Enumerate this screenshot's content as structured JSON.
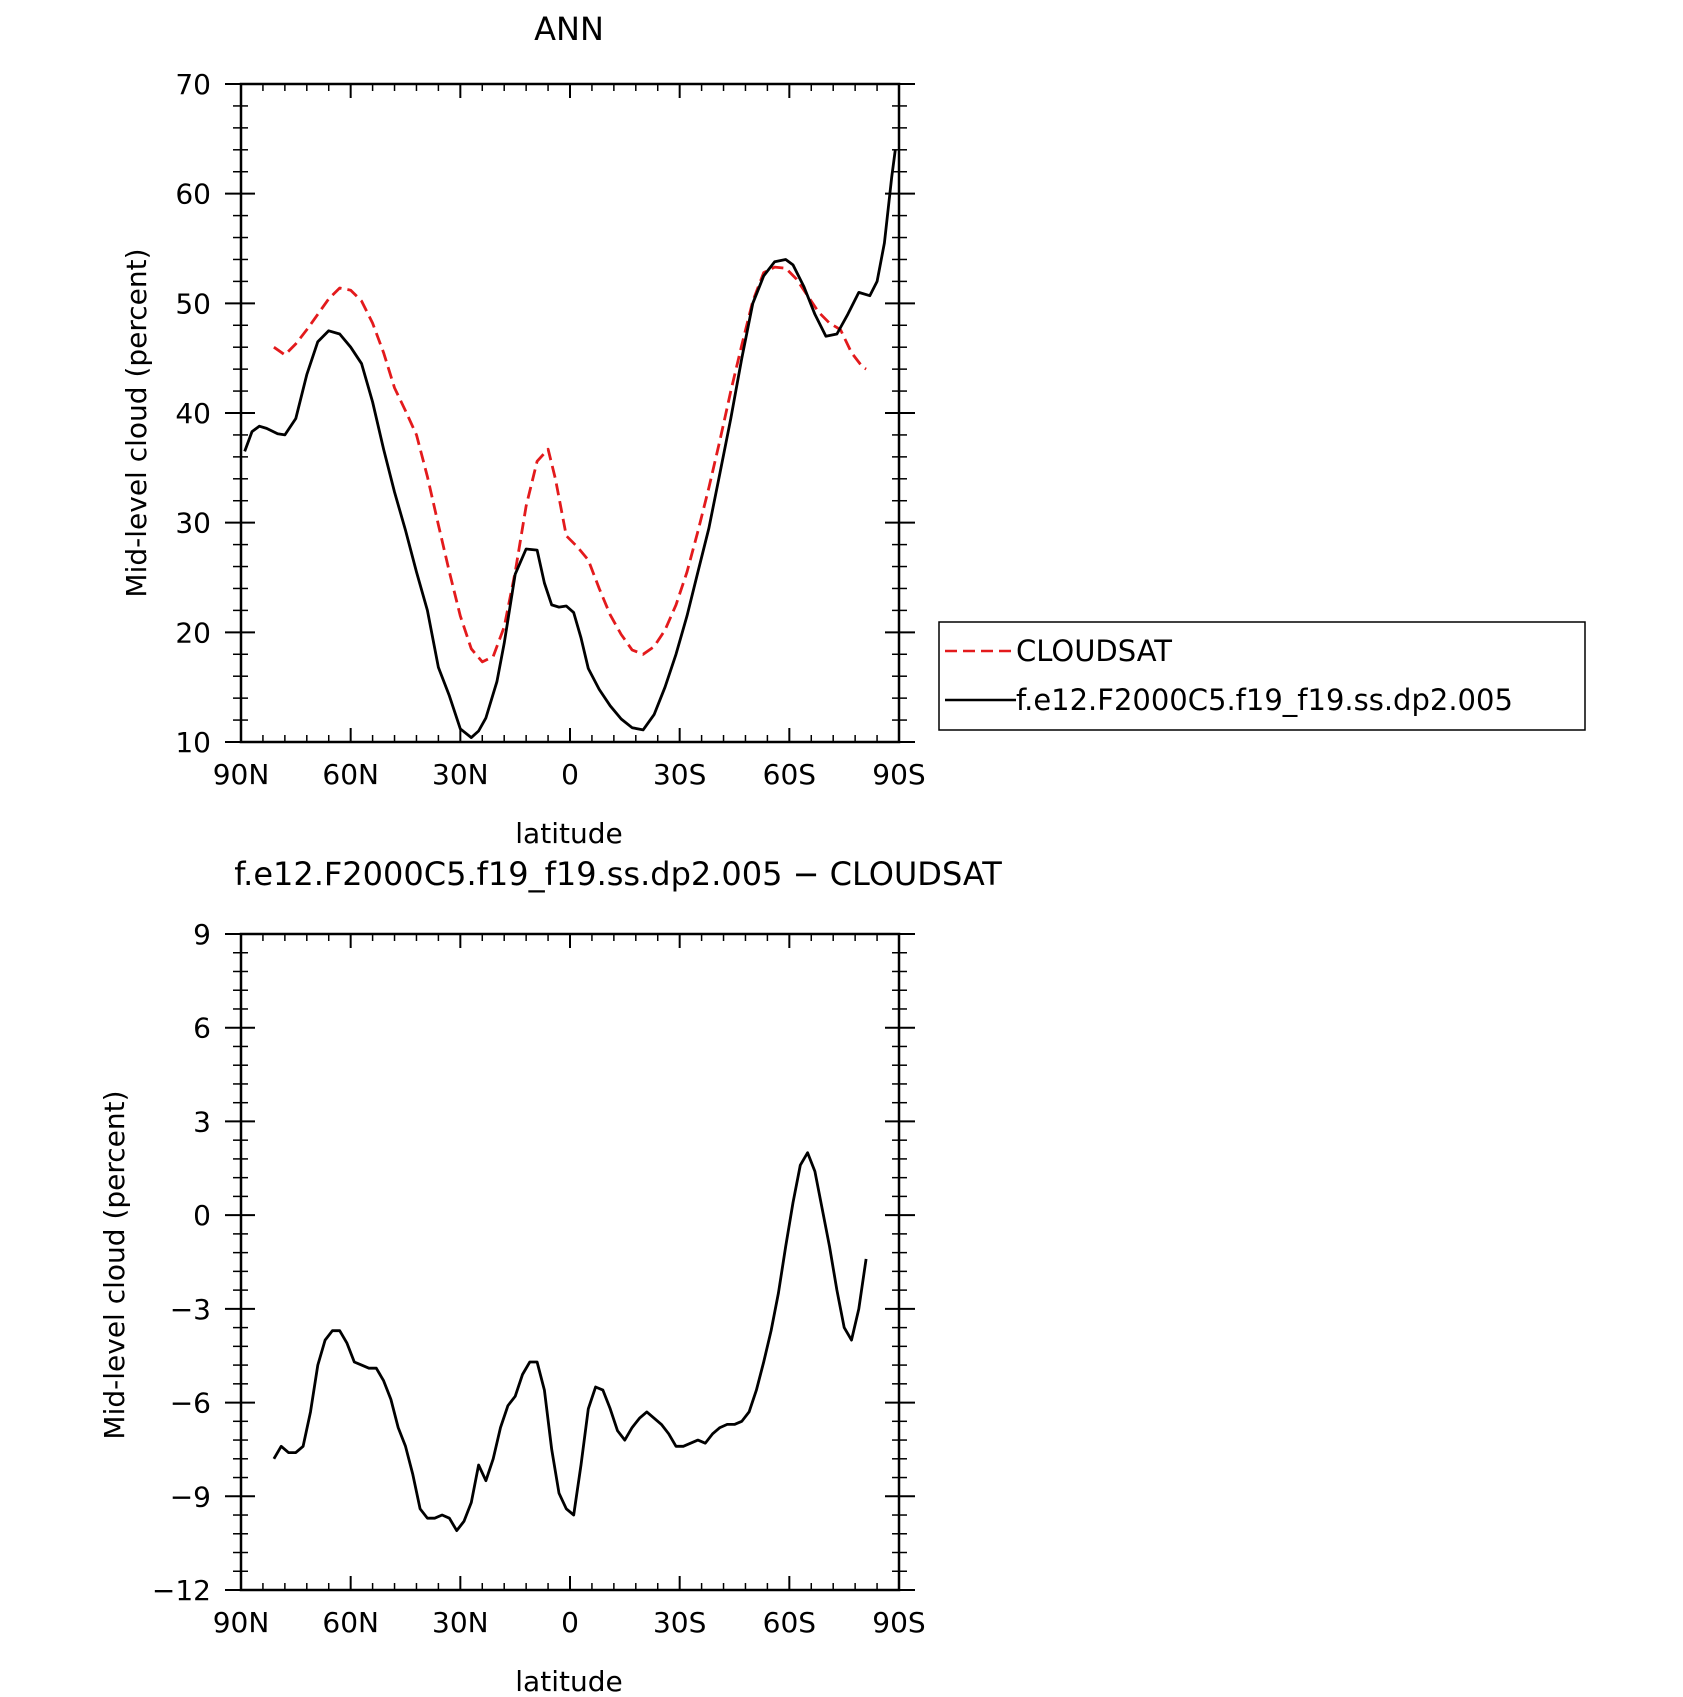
{
  "colors": {
    "cloudsat": "#e31a1c",
    "model": "#000000"
  },
  "chart_data": [
    {
      "type": "line",
      "title": "ANN",
      "xlabel": "latitude",
      "ylabel": "Mid-level cloud (percent)",
      "xlim": [
        90,
        -90
      ],
      "ylim": [
        10,
        70
      ],
      "xticks": [
        90,
        60,
        30,
        0,
        -30,
        -60,
        -90
      ],
      "xtick_labels": [
        "90N",
        "60N",
        "30N",
        "0",
        "30S",
        "60S",
        "90S"
      ],
      "yticks": [
        10,
        20,
        30,
        40,
        50,
        60,
        70
      ],
      "ytick_labels": [
        "10",
        "20",
        "30",
        "40",
        "50",
        "60",
        "70"
      ],
      "legend": "right",
      "series": [
        {
          "name": "CLOUDSAT",
          "style": "dashed",
          "x": [
            81,
            78,
            75,
            72,
            69,
            66,
            63,
            60,
            57,
            54,
            51,
            48,
            45,
            42,
            39,
            36,
            33,
            30,
            27,
            24,
            21,
            18,
            15,
            12,
            9,
            6,
            4,
            1,
            -2,
            -5,
            -8,
            -11,
            -14,
            -17,
            -20,
            -23,
            -26,
            -29,
            -32,
            -35,
            -38,
            -41,
            -44,
            -47,
            -50,
            -53,
            -56,
            -59,
            -62,
            -65,
            -68,
            -71,
            -74,
            -77,
            -80,
            -81
          ],
          "y": [
            46,
            45.3,
            46.3,
            47.6,
            49,
            50.4,
            51.4,
            51.2,
            50.2,
            48.2,
            45.5,
            42.3,
            40.2,
            38,
            34.2,
            29.8,
            25.5,
            21.5,
            18.5,
            17.3,
            17.8,
            20.5,
            25.5,
            31.5,
            35.6,
            36.7,
            34,
            28.8,
            27.8,
            26.6,
            24,
            21.6,
            19.8,
            18.4,
            18,
            18.7,
            20.2,
            22.5,
            25.5,
            29.2,
            33.2,
            37.5,
            42,
            46.2,
            50.2,
            52.8,
            53.3,
            53.2,
            52.2,
            50.7,
            49.2,
            48.2,
            47.6,
            45.5,
            44.2,
            44
          ]
        },
        {
          "name": "f.e12.F2000C5.f19_f19.ss.dp2.005",
          "style": "solid",
          "x": [
            89,
            87,
            85,
            83,
            80,
            78,
            75,
            72,
            69,
            66,
            63,
            60,
            57,
            54,
            51,
            48,
            45,
            42,
            39,
            36,
            33,
            30,
            27,
            25,
            23,
            20,
            18,
            15,
            12,
            9,
            7,
            5,
            3,
            1,
            -1,
            -3,
            -5,
            -8,
            -11,
            -14,
            -17,
            -20,
            -23,
            -26,
            -29,
            -32,
            -35,
            -38,
            -41,
            -44,
            -47,
            -50,
            -53,
            -56,
            -59,
            -61,
            -64,
            -67,
            -70,
            -73,
            -76,
            -79,
            -82,
            -84,
            -86,
            -88,
            -89
          ],
          "y": [
            36.5,
            38.3,
            38.8,
            38.6,
            38.1,
            38,
            39.5,
            43.5,
            46.5,
            47.5,
            47.2,
            46,
            44.5,
            41,
            36.7,
            32.8,
            29.3,
            25.5,
            22,
            16.8,
            14.2,
            11.2,
            10.4,
            11,
            12.2,
            15.5,
            19,
            25.3,
            27.6,
            27.5,
            24.5,
            22.5,
            22.3,
            22.4,
            21.8,
            19.5,
            16.7,
            14.8,
            13.3,
            12.1,
            11.3,
            11.1,
            12.5,
            15,
            18,
            21.5,
            25.5,
            29.5,
            34.5,
            39.5,
            45,
            50,
            52.5,
            53.8,
            54,
            53.5,
            51.5,
            49,
            47,
            47.2,
            49,
            51,
            50.7,
            52,
            55.5,
            61.5,
            64
          ]
        }
      ]
    },
    {
      "type": "line",
      "title": "f.e12.F2000C5.f19_f19.ss.dp2.005 − CLOUDSAT",
      "xlabel": "latitude",
      "ylabel": "Mid-level cloud (percent)",
      "xlim": [
        90,
        -90
      ],
      "ylim": [
        -12,
        9
      ],
      "xticks": [
        90,
        60,
        30,
        0,
        -30,
        -60,
        -90
      ],
      "xtick_labels": [
        "90N",
        "60N",
        "30N",
        "0",
        "30S",
        "60S",
        "90S"
      ],
      "yticks": [
        -12,
        -9,
        -6,
        -3,
        0,
        3,
        6,
        9
      ],
      "ytick_labels": [
        "−12",
        "−9",
        "−6",
        "−3",
        "0",
        "3",
        "6",
        "9"
      ],
      "series": [
        {
          "style": "solid",
          "x": [
            81,
            79,
            77,
            75,
            73,
            71,
            69,
            67,
            65,
            63,
            61,
            59,
            57,
            55,
            53,
            51,
            49,
            47,
            45,
            43,
            41,
            39,
            37,
            35,
            33,
            31,
            29,
            27,
            25,
            23,
            21,
            19,
            17,
            15,
            13,
            11,
            9,
            7,
            5,
            3,
            1,
            -1,
            -3,
            -5,
            -7,
            -9,
            -11,
            -13,
            -15,
            -17,
            -19,
            -21,
            -23,
            -25,
            -27,
            -29,
            -31,
            -33,
            -35,
            -37,
            -39,
            -41,
            -43,
            -45,
            -47,
            -49,
            -51,
            -53,
            -55,
            -57,
            -59,
            -61,
            -63,
            -65,
            -67,
            -69,
            -71,
            -73,
            -75,
            -77,
            -79,
            -81
          ],
          "y": [
            -7.8,
            -7.4,
            -7.6,
            -7.6,
            -7.4,
            -6.3,
            -4.8,
            -4,
            -3.7,
            -3.7,
            -4.1,
            -4.7,
            -4.8,
            -4.9,
            -4.9,
            -5.3,
            -5.9,
            -6.8,
            -7.4,
            -8.3,
            -9.4,
            -9.7,
            -9.7,
            -9.6,
            -9.7,
            -10.1,
            -9.8,
            -9.2,
            -8,
            -8.5,
            -7.8,
            -6.8,
            -6.1,
            -5.8,
            -5.1,
            -4.7,
            -4.7,
            -5.6,
            -7.5,
            -8.9,
            -9.4,
            -9.6,
            -8,
            -6.2,
            -5.5,
            -5.6,
            -6.2,
            -6.9,
            -7.2,
            -6.8,
            -6.5,
            -6.3,
            -6.5,
            -6.7,
            -7,
            -7.4,
            -7.4,
            -7.3,
            -7.2,
            -7.3,
            -7,
            -6.8,
            -6.7,
            -6.7,
            -6.6,
            -6.3,
            -5.6,
            -4.7,
            -3.7,
            -2.5,
            -1,
            0.4,
            1.6,
            2,
            1.4,
            0.2,
            -1,
            -2.4,
            -3.6,
            -4,
            -3,
            -1.4
          ]
        }
      ]
    }
  ]
}
